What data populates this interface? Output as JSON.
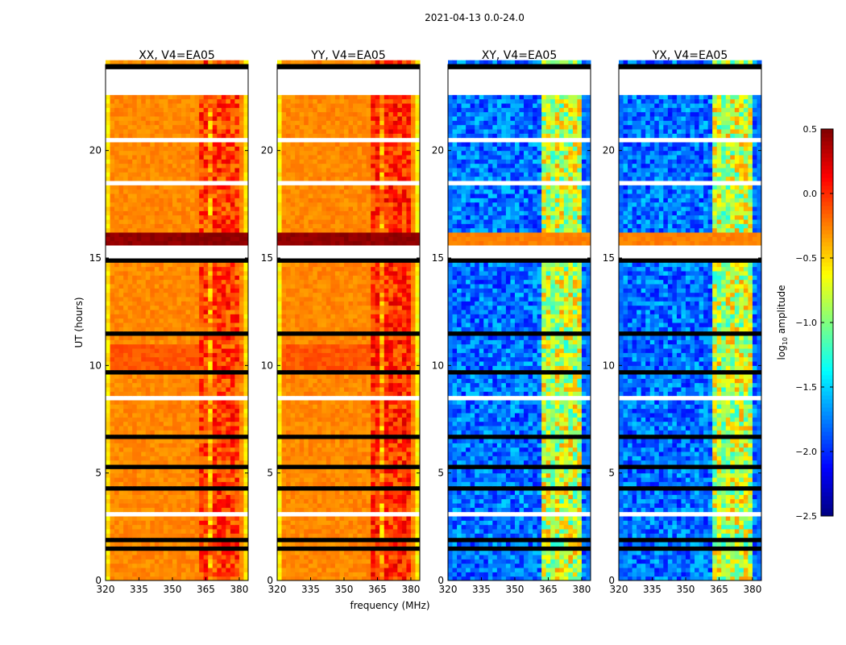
{
  "chart_data": {
    "type": "heatmap",
    "title": "2021-04-13 0.0-24.0",
    "xlabel": "frequency (MHz)",
    "ylabel": "UT (hours)",
    "xlim": [
      320,
      384
    ],
    "ylim": [
      0,
      24
    ],
    "xticks": [
      320,
      335,
      350,
      365,
      380
    ],
    "yticks": [
      0,
      5,
      10,
      15,
      20
    ],
    "colorbar": {
      "label": "log10 amplitude",
      "label_main": "log",
      "label_sub": "10",
      "label_rest": " amplitude",
      "range": [
        -2.5,
        0.5
      ],
      "ticks": [
        0.5,
        0.0,
        -0.5,
        -1.0,
        -1.5,
        -2.0,
        -2.5
      ],
      "tick_labels": [
        "0.5",
        "0.0",
        "−0.5",
        "−1.0",
        "−1.5",
        "−2.0",
        "−2.5"
      ],
      "colormap": "jet"
    },
    "panels": [
      {
        "title": "XX, V4=EA05",
        "base": -0.35,
        "edge": -0.65,
        "rfi": 0.2,
        "band_value": 0.5
      },
      {
        "title": "YY, V4=EA05",
        "base": -0.35,
        "edge": -0.7,
        "rfi": 0.25,
        "band_value": 0.5
      },
      {
        "title": "XY, V4=EA05",
        "base": -1.9,
        "edge": -1.9,
        "rfi": -0.3,
        "band_value": -0.2
      },
      {
        "title": "YX, V4=EA05",
        "base": -1.9,
        "edge": -1.9,
        "rfi": -0.3,
        "band_value": -0.2
      }
    ],
    "rfi_channels_mhz": [
      [
        363,
        367
      ],
      [
        368,
        372
      ],
      [
        373,
        376
      ],
      [
        377,
        380
      ]
    ],
    "strong_band_hours": [
      15.55,
      16.2
    ],
    "flagged_white_hours": [
      [
        22.65,
        23.75
      ],
      [
        18.3,
        18.6
      ],
      [
        15.05,
        15.5
      ],
      [
        17.3,
        17.45
      ],
      [
        20.3,
        20.5
      ],
      [
        8.5,
        8.6
      ],
      [
        3.0,
        3.2
      ],
      [
        12.5,
        12.6
      ]
    ],
    "flagged_black_hours": [
      [
        23.75,
        24.0
      ],
      [
        22.2,
        22.25
      ],
      [
        21.5,
        21.55
      ],
      [
        19.0,
        19.05
      ],
      [
        17.1,
        17.2
      ],
      [
        16.9,
        16.95
      ],
      [
        14.8,
        14.9
      ],
      [
        13.5,
        13.55
      ],
      [
        11.4,
        11.6
      ],
      [
        11.1,
        11.15
      ],
      [
        10.55,
        10.6
      ],
      [
        9.6,
        9.7
      ],
      [
        7.0,
        7.05
      ],
      [
        6.7,
        6.8
      ],
      [
        5.75,
        5.8
      ],
      [
        5.3,
        5.35
      ],
      [
        4.3,
        4.4
      ],
      [
        4.05,
        4.1
      ],
      [
        2.2,
        2.3
      ],
      [
        1.9,
        1.95
      ],
      [
        1.5,
        1.7
      ],
      [
        1.0,
        1.05
      ]
    ]
  }
}
